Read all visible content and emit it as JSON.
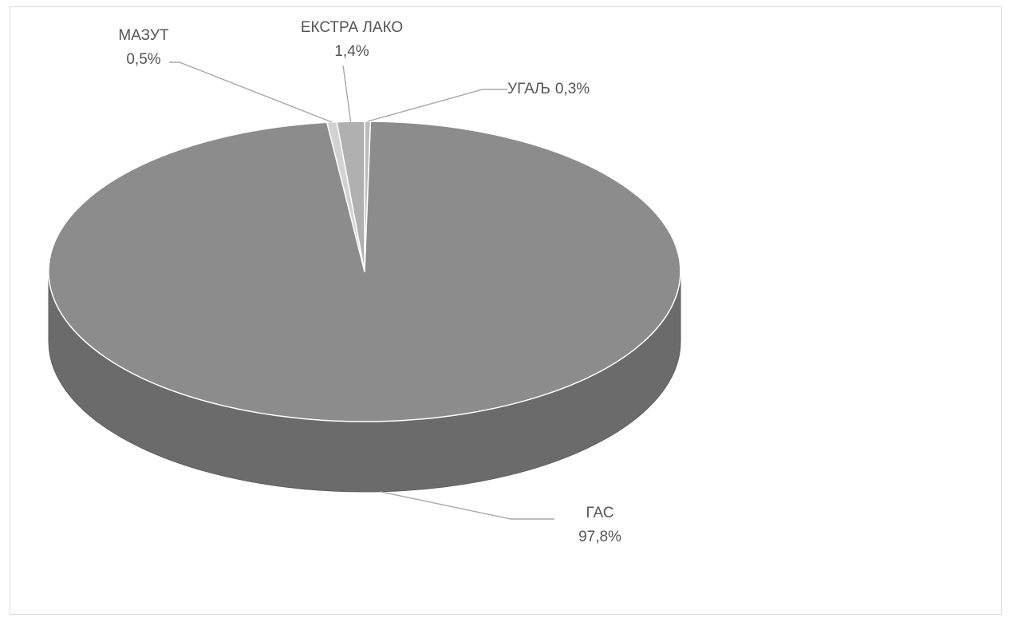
{
  "chart_data": {
    "type": "pie",
    "title": "",
    "style": "3d",
    "slices": [
      {
        "category": "УГАЉ",
        "value": 0.3,
        "label": "0,3%",
        "color": "#bdbdbd"
      },
      {
        "category": "ГАС",
        "value": 97.8,
        "label": "97,8%",
        "color": "#8c8c8c"
      },
      {
        "category": "МАЗУТ",
        "value": 0.5,
        "label": "0,5%",
        "color": "#d2d2d2"
      },
      {
        "category": "ЕКСТРА ЛАКО",
        "value": 1.4,
        "label": "1,4%",
        "color": "#b0b0b0"
      }
    ],
    "side_color": "#6b6b6b",
    "leader_color": "#a8a8a8"
  }
}
